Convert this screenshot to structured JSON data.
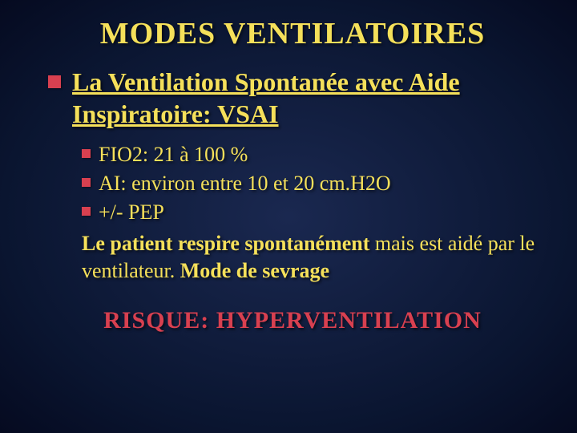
{
  "colors": {
    "title": "#f5e05a",
    "body": "#f5e05a",
    "bullet": "#d84050",
    "risk": "#d84050",
    "bg_center": "#1a2850",
    "bg_outer": "#050a20"
  },
  "typography": {
    "title_size_pt": 38,
    "l1_size_pt": 32,
    "l2_size_pt": 26,
    "body_size_pt": 26,
    "risk_size_pt": 30,
    "family": "Times New Roman"
  },
  "title": "MODES VENTILATOIRES",
  "subtitle": "La Ventilation Spontanée avec Aide Inspiratoire: VSAI",
  "bullets": [
    "FIO2: 21 à 100 %",
    "AI: environ entre 10 et 20 cm.H2O",
    "+/- PEP"
  ],
  "body": {
    "part1_bold": "Le patient respire spontanément",
    "part2": " mais est aidé par le ventilateur. ",
    "part3_bold": "Mode de sevrage"
  },
  "risk": "RISQUE: HYPERVENTILATION"
}
